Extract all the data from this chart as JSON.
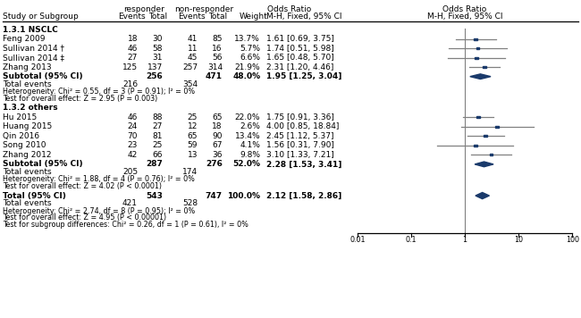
{
  "header_responder": "responder",
  "header_nonresponder": "non-responder",
  "header_or": "Odds Ratio",
  "header_or2": "Odds Ratio",
  "header_col1": "Study or Subgroup",
  "header_events": "Events",
  "header_total": "Total",
  "header_weight": "Weight",
  "header_mh": "M-H, Fixed, 95% CI",
  "section1_label": "1.3.1 NSCLC",
  "section1_studies": [
    "Feng 2009",
    "Sullivan 2014 †",
    "Sullivan 2014 ‡",
    "Zhang 2013"
  ],
  "section1_resp_events": [
    18,
    46,
    27,
    125
  ],
  "section1_resp_total": [
    30,
    58,
    31,
    137
  ],
  "section1_nonresp_events": [
    41,
    11,
    45,
    257
  ],
  "section1_nonresp_total": [
    85,
    16,
    56,
    314
  ],
  "section1_weight": [
    "13.7%",
    "5.7%",
    "6.6%",
    "21.9%"
  ],
  "section1_or_text": [
    "1.61 [0.69, 3.75]",
    "1.74 [0.51, 5.98]",
    "1.65 [0.48, 5.70]",
    "2.31 [1.20, 4.46]"
  ],
  "section1_or": [
    1.61,
    1.74,
    1.65,
    2.31
  ],
  "section1_ci_lo": [
    0.69,
    0.51,
    0.48,
    1.2
  ],
  "section1_ci_hi": [
    3.75,
    5.98,
    5.7,
    4.46
  ],
  "section1_subtotal_label": "Subtotal (95% CI)",
  "section1_subtotal_resp_total": 256,
  "section1_subtotal_nonresp_total": 471,
  "section1_subtotal_weight": "48.0%",
  "section1_subtotal_or_text": "1.95 [1.25, 3.04]",
  "section1_subtotal_or": 1.95,
  "section1_subtotal_ci_lo": 1.25,
  "section1_subtotal_ci_hi": 3.04,
  "section1_total_events_resp": 216,
  "section1_total_events_nonresp": 354,
  "section1_heterogeneity": "Heterogeneity: Chi² = 0.55, df = 3 (P = 0.91); I² = 0%",
  "section1_test": "Test for overall effect: Z = 2.95 (P = 0.003)",
  "section2_label": "1.3.2 others",
  "section2_studies": [
    "Hu 2015",
    "Huang 2015",
    "Qin 2016",
    "Song 2010",
    "Zhang 2012"
  ],
  "section2_resp_events": [
    46,
    24,
    70,
    23,
    42
  ],
  "section2_resp_total": [
    88,
    27,
    81,
    25,
    66
  ],
  "section2_nonresp_events": [
    25,
    12,
    65,
    59,
    13
  ],
  "section2_nonresp_total": [
    65,
    18,
    90,
    67,
    36
  ],
  "section2_weight": [
    "22.0%",
    "2.6%",
    "13.4%",
    "4.1%",
    "9.8%"
  ],
  "section2_or_text": [
    "1.75 [0.91, 3.36]",
    "4.00 [0.85, 18.84]",
    "2.45 [1.12, 5.37]",
    "1.56 [0.31, 7.90]",
    "3.10 [1.33, 7.21]"
  ],
  "section2_or": [
    1.75,
    4.0,
    2.45,
    1.56,
    3.1
  ],
  "section2_ci_lo": [
    0.91,
    0.85,
    1.12,
    0.31,
    1.33
  ],
  "section2_ci_hi": [
    3.36,
    18.84,
    5.37,
    7.9,
    7.21
  ],
  "section2_subtotal_label": "Subtotal (95% CI)",
  "section2_subtotal_resp_total": 287,
  "section2_subtotal_nonresp_total": 276,
  "section2_subtotal_weight": "52.0%",
  "section2_subtotal_or_text": "2.28 [1.53, 3.41]",
  "section2_subtotal_or": 2.28,
  "section2_subtotal_ci_lo": 1.53,
  "section2_subtotal_ci_hi": 3.41,
  "section2_total_events_resp": 205,
  "section2_total_events_nonresp": 174,
  "section2_heterogeneity": "Heterogeneity: Chi² = 1.88, df = 4 (P = 0.76); I² = 0%",
  "section2_test": "Test for overall effect: Z = 4.02 (P < 0.0001)",
  "total_label": "Total (95% CI)",
  "total_resp_total": 543,
  "total_nonresp_total": 747,
  "total_weight": "100.0%",
  "total_or_text": "2.12 [1.58, 2.86]",
  "total_or": 2.12,
  "total_ci_lo": 1.58,
  "total_ci_hi": 2.86,
  "total_events_resp": 421,
  "total_events_nonresp": 528,
  "total_heterogeneity": "Heterogeneity: Chi² = 2.74, df = 8 (P = 0.95); I² = 0%",
  "total_test": "Test for overall effect: Z = 4.95 (P < 0.00001)",
  "total_subgroup": "Test for subgroup differences: Chi² = 0.26, df = 1 (P = 0.61), I² = 0%",
  "axis_ticks": [
    0.01,
    0.1,
    1,
    10,
    100
  ],
  "axis_min": 0.01,
  "axis_max": 100,
  "point_color": "#1a3a6b",
  "diamond_color": "#1a3a6b",
  "line_color": "#808080",
  "ref_line_color": "#808080",
  "font_size": 6.5,
  "font_size_header": 6.5,
  "font_size_small": 5.8
}
